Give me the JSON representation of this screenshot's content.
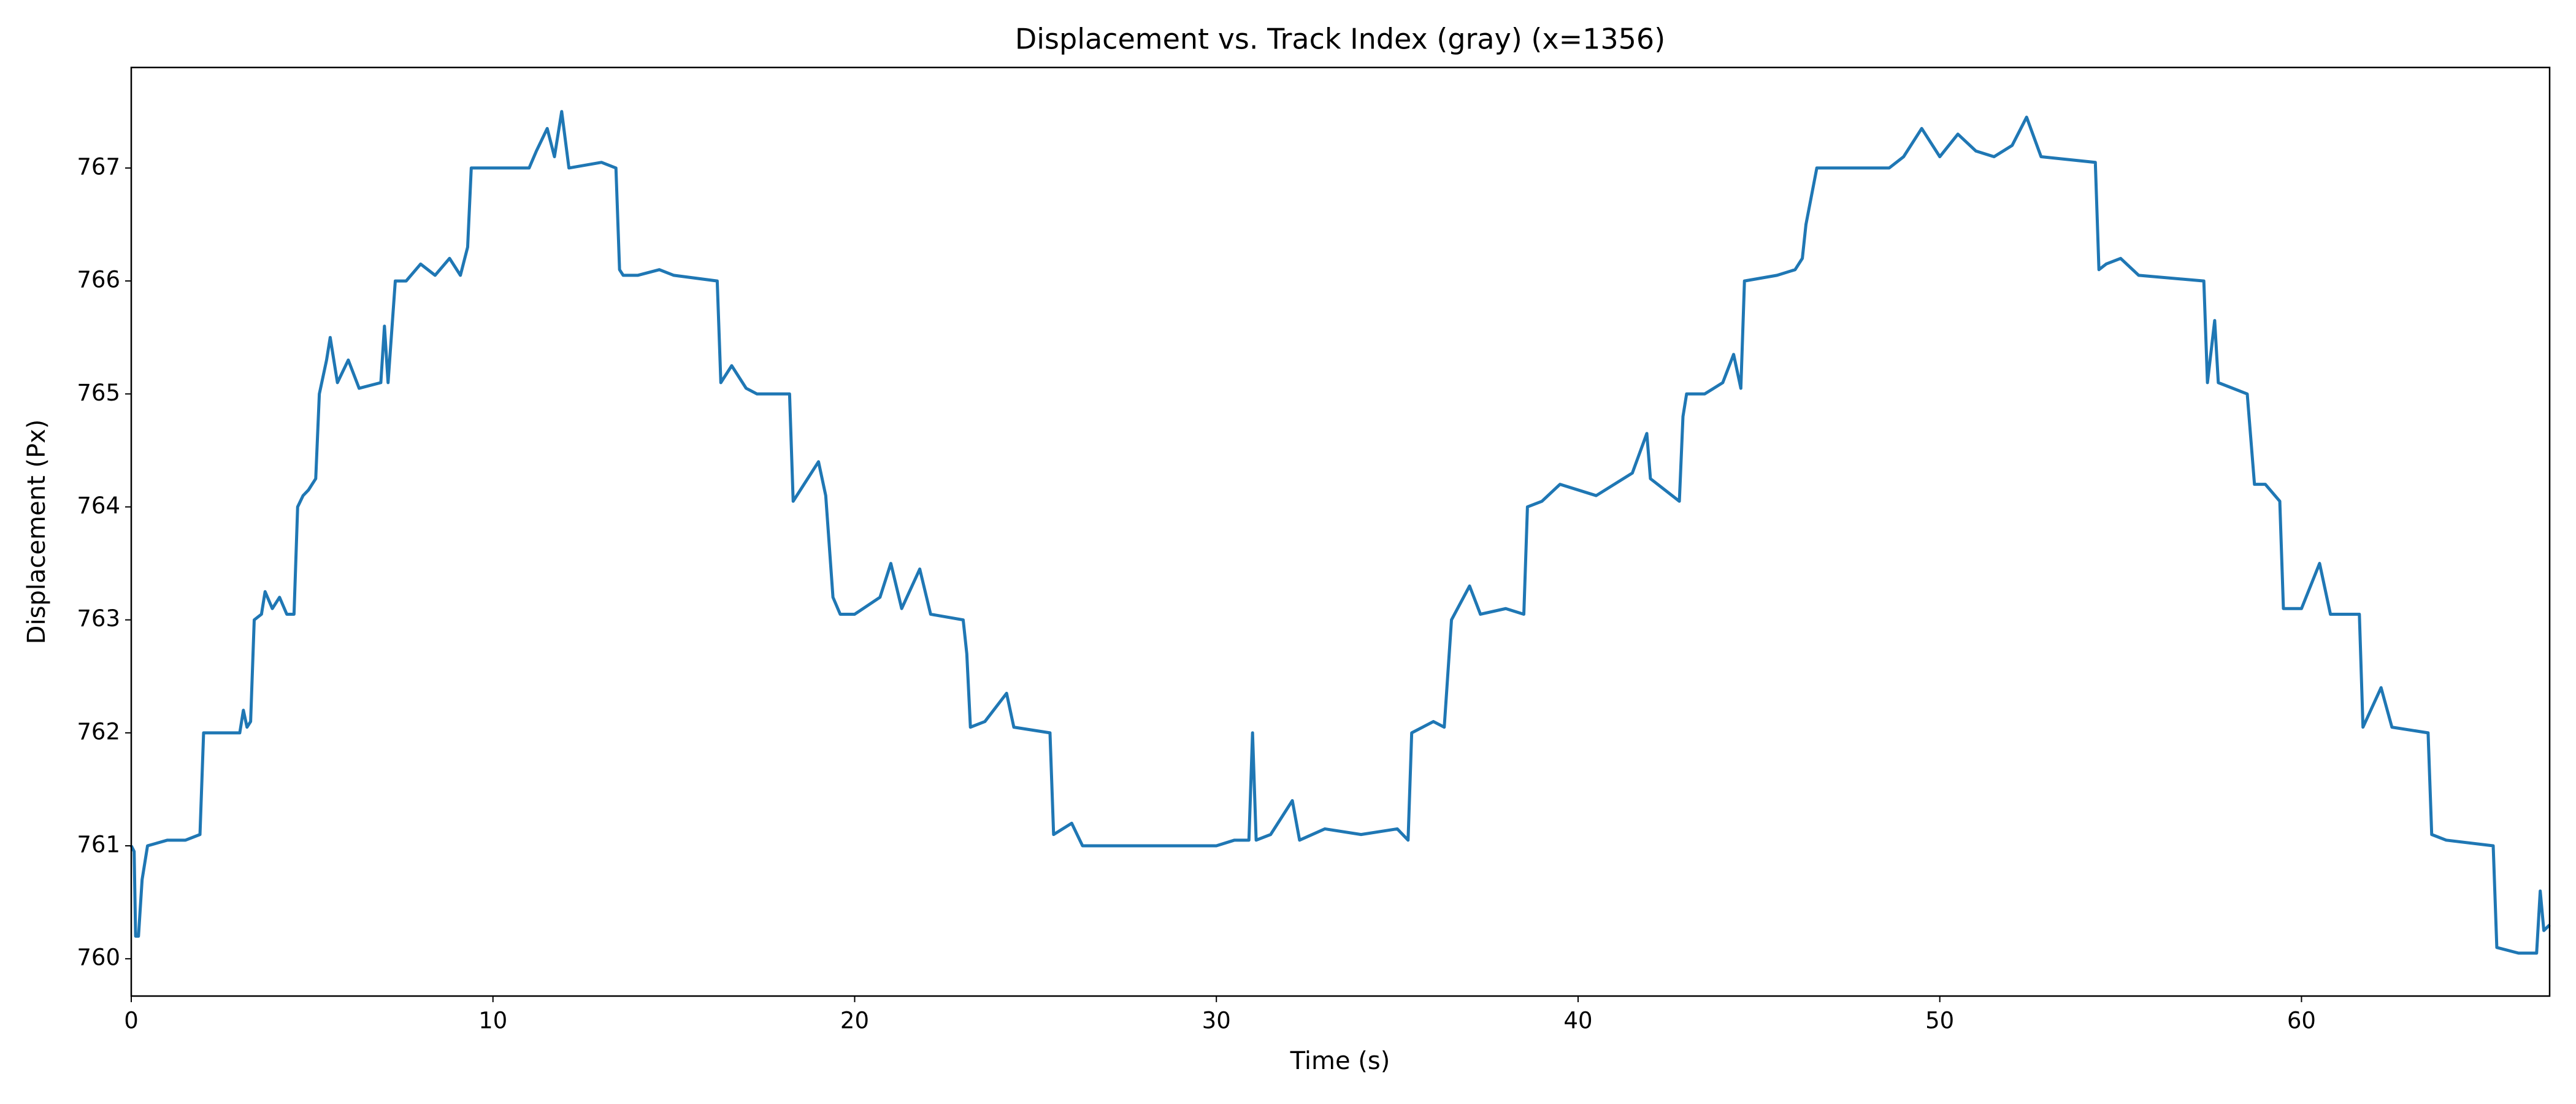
{
  "chart_data": {
    "type": "line",
    "title": "Displacement vs. Track Index (gray) (x=1356)",
    "xlabel": "Time (s)",
    "ylabel": "Displacement (Px)",
    "color": "#1f77b4",
    "xlim": [
      0,
      66.86
    ],
    "ylim": [
      759.67,
      767.89
    ],
    "xticks": [
      0,
      10,
      20,
      30,
      40,
      50,
      60
    ],
    "yticks": [
      760,
      761,
      762,
      763,
      764,
      765,
      766,
      767
    ],
    "grid": false,
    "x": [
      0,
      0.08,
      0.12,
      0.2,
      0.3,
      0.45,
      1.0,
      1.5,
      1.9,
      2.0,
      3.0,
      3.1,
      3.2,
      3.3,
      3.4,
      3.6,
      3.7,
      3.9,
      4.1,
      4.3,
      4.5,
      4.6,
      4.75,
      4.9,
      5.1,
      5.2,
      5.4,
      5.5,
      5.7,
      6.0,
      6.3,
      6.9,
      7.0,
      7.1,
      7.3,
      7.6,
      8.0,
      8.4,
      8.8,
      9.1,
      9.3,
      9.4,
      10.5,
      11.0,
      11.2,
      11.5,
      11.7,
      11.9,
      12.1,
      13.0,
      13.4,
      13.5,
      13.6,
      14.0,
      14.6,
      15.0,
      16.2,
      16.3,
      16.6,
      17.0,
      17.3,
      18.2,
      18.3,
      18.6,
      19.0,
      19.2,
      19.4,
      19.6,
      20.0,
      20.7,
      21.0,
      21.3,
      21.8,
      22.1,
      23.0,
      23.1,
      23.2,
      23.6,
      24.2,
      24.4,
      25.4,
      25.5,
      26.0,
      26.3,
      30.0,
      30.5,
      30.9,
      31.0,
      31.1,
      31.5,
      32.1,
      32.3,
      33.0,
      34.0,
      35.0,
      35.3,
      35.4,
      36.0,
      36.3,
      36.5,
      37.0,
      37.3,
      38.0,
      38.5,
      38.6,
      39.0,
      39.5,
      40.5,
      41.5,
      41.9,
      42.0,
      42.8,
      42.9,
      43.0,
      43.5,
      44.0,
      44.3,
      44.5,
      44.6,
      45.5,
      46.0,
      46.2,
      46.3,
      46.6,
      48.6,
      49.0,
      49.5,
      50.0,
      50.5,
      51.0,
      51.5,
      52.0,
      52.4,
      52.8,
      54.3,
      54.4,
      54.6,
      55.0,
      55.5,
      57.3,
      57.4,
      57.6,
      57.7,
      58.5,
      58.7,
      59.0,
      59.4,
      59.5,
      60.0,
      60.5,
      60.8,
      61.6,
      61.7,
      62.2,
      62.5,
      63.5,
      63.6,
      64.0,
      65.3,
      65.4,
      66.0,
      66.5,
      66.6,
      66.7,
      66.86
    ],
    "values": [
      761,
      760.95,
      760.2,
      760.2,
      760.7,
      761,
      761.05,
      761.05,
      761.1,
      762,
      762,
      762.2,
      762.05,
      762.1,
      763,
      763.05,
      763.25,
      763.1,
      763.2,
      763.05,
      763.05,
      764,
      764.1,
      764.15,
      764.25,
      765,
      765.3,
      765.5,
      765.1,
      765.3,
      765.05,
      765.1,
      765.6,
      765.1,
      766,
      766,
      766.15,
      766.05,
      766.2,
      766.05,
      766.3,
      767,
      767,
      767,
      767.15,
      767.35,
      767.1,
      767.5,
      767,
      767.05,
      767,
      766.1,
      766.05,
      766.05,
      766.1,
      766.05,
      766,
      765.1,
      765.25,
      765.05,
      765,
      765,
      764.05,
      764.2,
      764.4,
      764.1,
      763.2,
      763.05,
      763.05,
      763.2,
      763.5,
      763.1,
      763.45,
      763.05,
      763,
      762.7,
      762.05,
      762.1,
      762.35,
      762.05,
      762,
      761.1,
      761.2,
      761,
      761,
      761.05,
      761.05,
      762,
      761.05,
      761.1,
      761.4,
      761.05,
      761.15,
      761.1,
      761.15,
      761.05,
      762,
      762.1,
      762.05,
      763,
      763.3,
      763.05,
      763.1,
      763.05,
      764,
      764.05,
      764.2,
      764.1,
      764.3,
      764.65,
      764.25,
      764.05,
      764.8,
      765,
      765,
      765.1,
      765.35,
      765.05,
      766,
      766.05,
      766.1,
      766.2,
      766.5,
      767,
      767,
      767.1,
      767.35,
      767.1,
      767.3,
      767.15,
      767.1,
      767.2,
      767.45,
      767.1,
      767.05,
      766.1,
      766.15,
      766.2,
      766.05,
      766,
      765.1,
      765.65,
      765.1,
      765,
      764.2,
      764.2,
      764.05,
      763.1,
      763.1,
      763.5,
      763.05,
      763.05,
      762.05,
      762.4,
      762.05,
      762,
      761.1,
      761.05,
      761,
      760.1,
      760.05,
      760.05,
      760.6,
      760.25,
      760.3
    ]
  }
}
